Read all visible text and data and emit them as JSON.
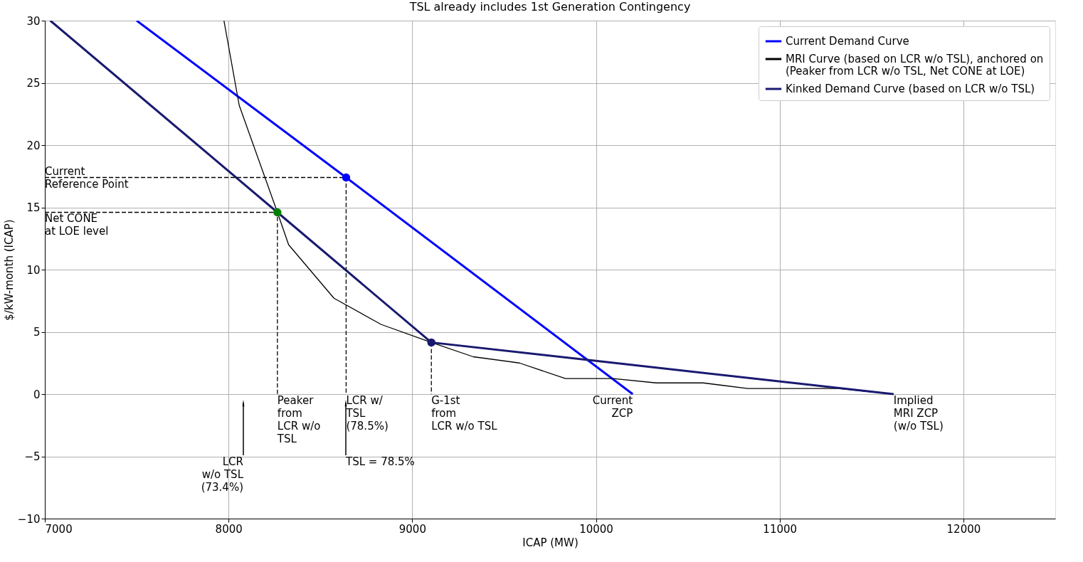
{
  "chart_data": {
    "type": "line",
    "title": "TSL already includes 1st Generation Contingency",
    "xlabel": "ICAP (MW)",
    "ylabel": "$/kW-month (ICAP)",
    "xlim": [
      7000,
      12500
    ],
    "xticks": [
      7000,
      8000,
      9000,
      10000,
      11000,
      12000
    ],
    "ylim": [
      -10,
      30
    ],
    "yticks": [
      {
        "value": -10,
        "label": "−10"
      },
      {
        "value": -5,
        "label": "−5"
      },
      0,
      5,
      10,
      15,
      20,
      25,
      30
    ],
    "grid": true,
    "legend": "top right",
    "series": [
      {
        "name": "Current Demand Curve",
        "color": "#0000ff",
        "x": [
          7500,
          8640,
          10200
        ],
        "values": [
          30,
          17.4,
          0
        ]
      },
      {
        "name": "MRI Curve (based on LCR w/o TSL), anchored on\n(Peaker from LCR w/o TSL, Net CONE at LOE)",
        "color": "#000000",
        "x": [
          7975,
          8058,
          8266,
          8327,
          8574,
          8830,
          9104,
          9332,
          9583,
          9834,
          10093,
          10328,
          10583,
          10826,
          11320,
          11620
        ],
        "values": [
          30,
          23.2,
          14.6,
          12.0,
          7.7,
          5.6,
          4.15,
          3.0,
          2.5,
          1.25,
          1.25,
          0.9,
          0.9,
          0.45,
          0.45,
          0
        ]
      },
      {
        "name": "Kinked Demand Curve (based on LCR w/o TSL)",
        "color": "#191970",
        "x": [
          7030,
          8266,
          9104,
          11620
        ],
        "values": [
          30,
          14.6,
          4.15,
          0
        ]
      },
      {
        "color": "#000000",
        "line_style": "dashed",
        "x": [
          7000,
          8640,
          8640
        ],
        "values": [
          17.4,
          17.4,
          0
        ]
      },
      {
        "color": "#000000",
        "line_style": "dashed",
        "x": [
          7000,
          8266,
          8266
        ],
        "values": [
          14.6,
          14.6,
          0
        ]
      },
      {
        "color": "#000000",
        "line_style": "dashed",
        "x": [
          9104,
          9104
        ],
        "values": [
          4.15,
          0
        ]
      },
      {
        "color": "#0000ff",
        "type": "scatter",
        "x": [
          8640
        ],
        "values": [
          17.4
        ]
      },
      {
        "color": "#008000",
        "type": "scatter",
        "x": [
          8266
        ],
        "values": [
          14.6
        ]
      },
      {
        "color": "#191970",
        "type": "scatter",
        "x": [
          9104
        ],
        "values": [
          4.15
        ]
      }
    ],
    "annotations": [
      {
        "text": "Current\nReference Point",
        "x": 7000,
        "y": 17.4
      },
      {
        "text": "Net CONE\nat LOE level",
        "x": 7000,
        "y": 14.6
      },
      {
        "text": "Peaker\nfrom\nLCR w/o\nTSL",
        "x": 8266,
        "y": 0
      },
      {
        "text": "LCR w/\nTSL\n(78.5%)",
        "x": 8640,
        "y": 0
      },
      {
        "text": "G-1st\nfrom\nLCR w/o TSL",
        "x": 9104,
        "y": 0
      },
      {
        "text": "Current\nZCP",
        "x": 10200,
        "y": 0
      },
      {
        "text": "Implied\nMRI ZCP\n(w/o TSL)",
        "x": 11620,
        "y": 0
      },
      "LCR\nw/o TSL\n(73.4%)",
      "TSL = 78.5%"
    ]
  }
}
